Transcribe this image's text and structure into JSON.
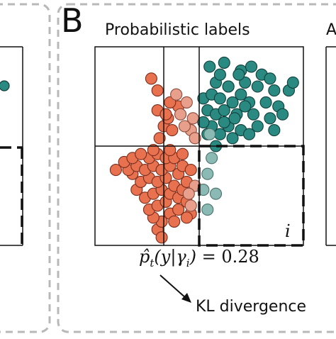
{
  "panel": {
    "letter": "B",
    "title": "Probabilistic labels",
    "right_panel_letter_fragment": "A"
  },
  "region_label": "i",
  "formula": {
    "lhs": "p̂",
    "sub": "t",
    "args": "(y|γ",
    "sub_i": "i",
    "close": ")",
    "eq": " = 0.28"
  },
  "kl_label": "KL divergence",
  "colors": {
    "orange": "#e8714f",
    "orange_edge": "#7a2d1c",
    "light_orange": "#e8a08d",
    "teal": "#2a8a82",
    "teal_edge": "#0f3f3b",
    "light_teal": "#8bb9b4",
    "frame_dash": "#b8b8b8",
    "axis": "#111111"
  },
  "chart_data": {
    "type": "scatter",
    "xlim": [
      0,
      100
    ],
    "ylim": [
      0,
      100
    ],
    "dividers": {
      "x_lines": [
        33,
        50
      ],
      "y_line": 50
    },
    "region_i": {
      "x": [
        50,
        100
      ],
      "y": [
        0,
        50
      ]
    },
    "series": [
      {
        "color": "orange",
        "points": [
          [
            30,
            8
          ],
          [
            32,
            12
          ],
          [
            28,
            14
          ],
          [
            26,
            18
          ],
          [
            30,
            20
          ],
          [
            34,
            22
          ],
          [
            36,
            16
          ],
          [
            38,
            12
          ],
          [
            40,
            18
          ],
          [
            24,
            24
          ],
          [
            28,
            26
          ],
          [
            32,
            28
          ],
          [
            36,
            26
          ],
          [
            40,
            24
          ],
          [
            20,
            28
          ],
          [
            22,
            32
          ],
          [
            18,
            36
          ],
          [
            26,
            34
          ],
          [
            30,
            32
          ],
          [
            34,
            34
          ],
          [
            38,
            30
          ],
          [
            42,
            28
          ],
          [
            44,
            22
          ],
          [
            46,
            16
          ],
          [
            16,
            38
          ],
          [
            20,
            40
          ],
          [
            24,
            38
          ],
          [
            28,
            40
          ],
          [
            32,
            38
          ],
          [
            36,
            40
          ],
          [
            40,
            36
          ],
          [
            44,
            32
          ],
          [
            14,
            42
          ],
          [
            18,
            44
          ],
          [
            26,
            44
          ],
          [
            30,
            46
          ],
          [
            34,
            44
          ],
          [
            38,
            44
          ],
          [
            42,
            40
          ],
          [
            22,
            46
          ],
          [
            28,
            48
          ],
          [
            36,
            48
          ],
          [
            42,
            46
          ],
          [
            46,
            38
          ],
          [
            31,
            54
          ],
          [
            33,
            60
          ],
          [
            35,
            64
          ],
          [
            37,
            58
          ],
          [
            30,
            68
          ],
          [
            27,
            84
          ],
          [
            40,
            70
          ],
          [
            36,
            72
          ],
          [
            34,
            66
          ],
          [
            10,
            38
          ],
          [
            30,
            78
          ],
          [
            32,
            4
          ],
          [
            44,
            14
          ]
        ]
      },
      {
        "color": "light_orange",
        "points": [
          [
            39,
            76
          ],
          [
            44,
            72
          ],
          [
            47,
            64
          ],
          [
            46,
            58
          ],
          [
            48,
            54
          ],
          [
            43,
            60
          ],
          [
            41,
            66
          ],
          [
            46,
            20
          ],
          [
            48,
            30
          ],
          [
            45,
            26
          ]
        ]
      },
      {
        "color": "teal",
        "points": [
          [
            55,
            90
          ],
          [
            62,
            92
          ],
          [
            70,
            88
          ],
          [
            75,
            90
          ],
          [
            80,
            86
          ],
          [
            84,
            84
          ],
          [
            58,
            82
          ],
          [
            64,
            80
          ],
          [
            72,
            82
          ],
          [
            78,
            80
          ],
          [
            86,
            78
          ],
          [
            52,
            74
          ],
          [
            56,
            76
          ],
          [
            60,
            74
          ],
          [
            66,
            72
          ],
          [
            70,
            76
          ],
          [
            74,
            72
          ],
          [
            82,
            72
          ],
          [
            88,
            70
          ],
          [
            54,
            68
          ],
          [
            58,
            66
          ],
          [
            62,
            68
          ],
          [
            68,
            66
          ],
          [
            76,
            66
          ],
          [
            84,
            64
          ],
          [
            90,
            66
          ],
          [
            56,
            60
          ],
          [
            64,
            60
          ],
          [
            70,
            58
          ],
          [
            78,
            60
          ],
          [
            52,
            62
          ],
          [
            60,
            56
          ],
          [
            66,
            54
          ],
          [
            74,
            56
          ],
          [
            86,
            58
          ],
          [
            58,
            50
          ],
          [
            64,
            80
          ],
          [
            69,
            86
          ],
          [
            62,
            62
          ],
          [
            93,
            78
          ],
          [
            95,
            82
          ],
          [
            67,
            64
          ],
          [
            54,
            56
          ],
          [
            72,
            70
          ],
          [
            60,
            86
          ]
        ]
      },
      {
        "color": "light_teal",
        "points": [
          [
            56,
            44
          ],
          [
            54,
            36
          ],
          [
            58,
            26
          ],
          [
            54,
            18
          ],
          [
            52,
            28
          ],
          [
            55,
            56
          ]
        ]
      }
    ]
  }
}
